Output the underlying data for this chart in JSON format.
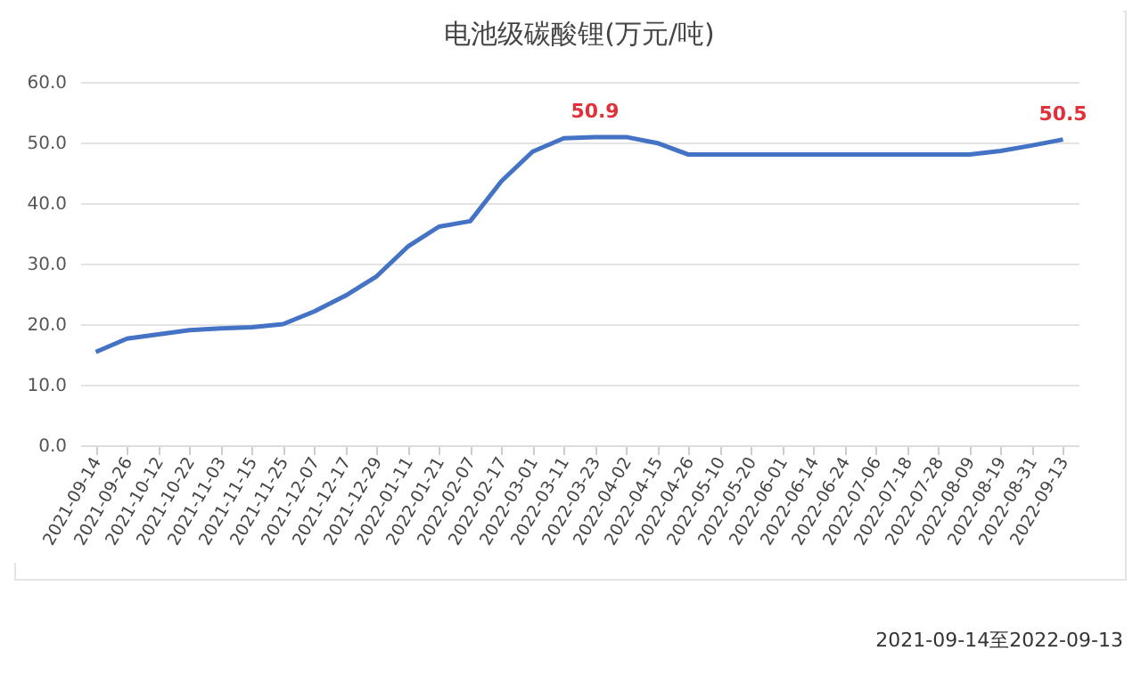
{
  "chart_data": {
    "type": "line",
    "title": "电池级碳酸锂(万元/吨)",
    "categories": [
      "2021-09-14",
      "2021-09-26",
      "2021-10-12",
      "2021-10-22",
      "2021-11-03",
      "2021-11-15",
      "2021-11-25",
      "2021-12-07",
      "2021-12-17",
      "2021-12-29",
      "2022-01-11",
      "2022-01-21",
      "2022-02-07",
      "2022-02-17",
      "2022-03-01",
      "2022-03-11",
      "2022-03-23",
      "2022-04-02",
      "2022-04-15",
      "2022-04-26",
      "2022-05-10",
      "2022-05-20",
      "2022-06-01",
      "2022-06-14",
      "2022-06-24",
      "2022-07-06",
      "2022-07-18",
      "2022-07-28",
      "2022-08-09",
      "2022-08-19",
      "2022-08-31",
      "2022-09-13"
    ],
    "series": [
      {
        "color": "#4472c4",
        "values": [
          15.4,
          17.6,
          18.3,
          19.0,
          19.3,
          19.5,
          20.0,
          22.1,
          24.7,
          27.9,
          32.8,
          36.1,
          37.0,
          43.6,
          48.5,
          50.7,
          50.9,
          50.9,
          49.9,
          48.0,
          48.0,
          48.0,
          48.0,
          48.0,
          48.0,
          48.0,
          48.0,
          48.0,
          48.0,
          48.6,
          49.5,
          50.5
        ],
        "value_labels": [
          null,
          null,
          null,
          null,
          null,
          null,
          null,
          null,
          null,
          null,
          null,
          null,
          null,
          null,
          null,
          null,
          "50.9",
          null,
          null,
          null,
          null,
          null,
          null,
          null,
          null,
          null,
          null,
          null,
          null,
          null,
          null,
          "50.5"
        ]
      }
    ],
    "ylim": [
      0,
      60
    ],
    "yticks": [
      {
        "value": 0,
        "label": "0.0"
      },
      {
        "value": 10,
        "label": "10.0"
      },
      {
        "value": 20,
        "label": "20.0"
      },
      {
        "value": 30,
        "label": "30.0"
      },
      {
        "value": 40,
        "label": "40.0"
      },
      {
        "value": 50,
        "label": "50.0"
      },
      {
        "value": 60,
        "label": "60.0"
      }
    ],
    "grid": "y",
    "legend": false,
    "marker": "none",
    "line_style": "solid",
    "annotations": [
      "2021-09-14至2022-09-13"
    ]
  }
}
